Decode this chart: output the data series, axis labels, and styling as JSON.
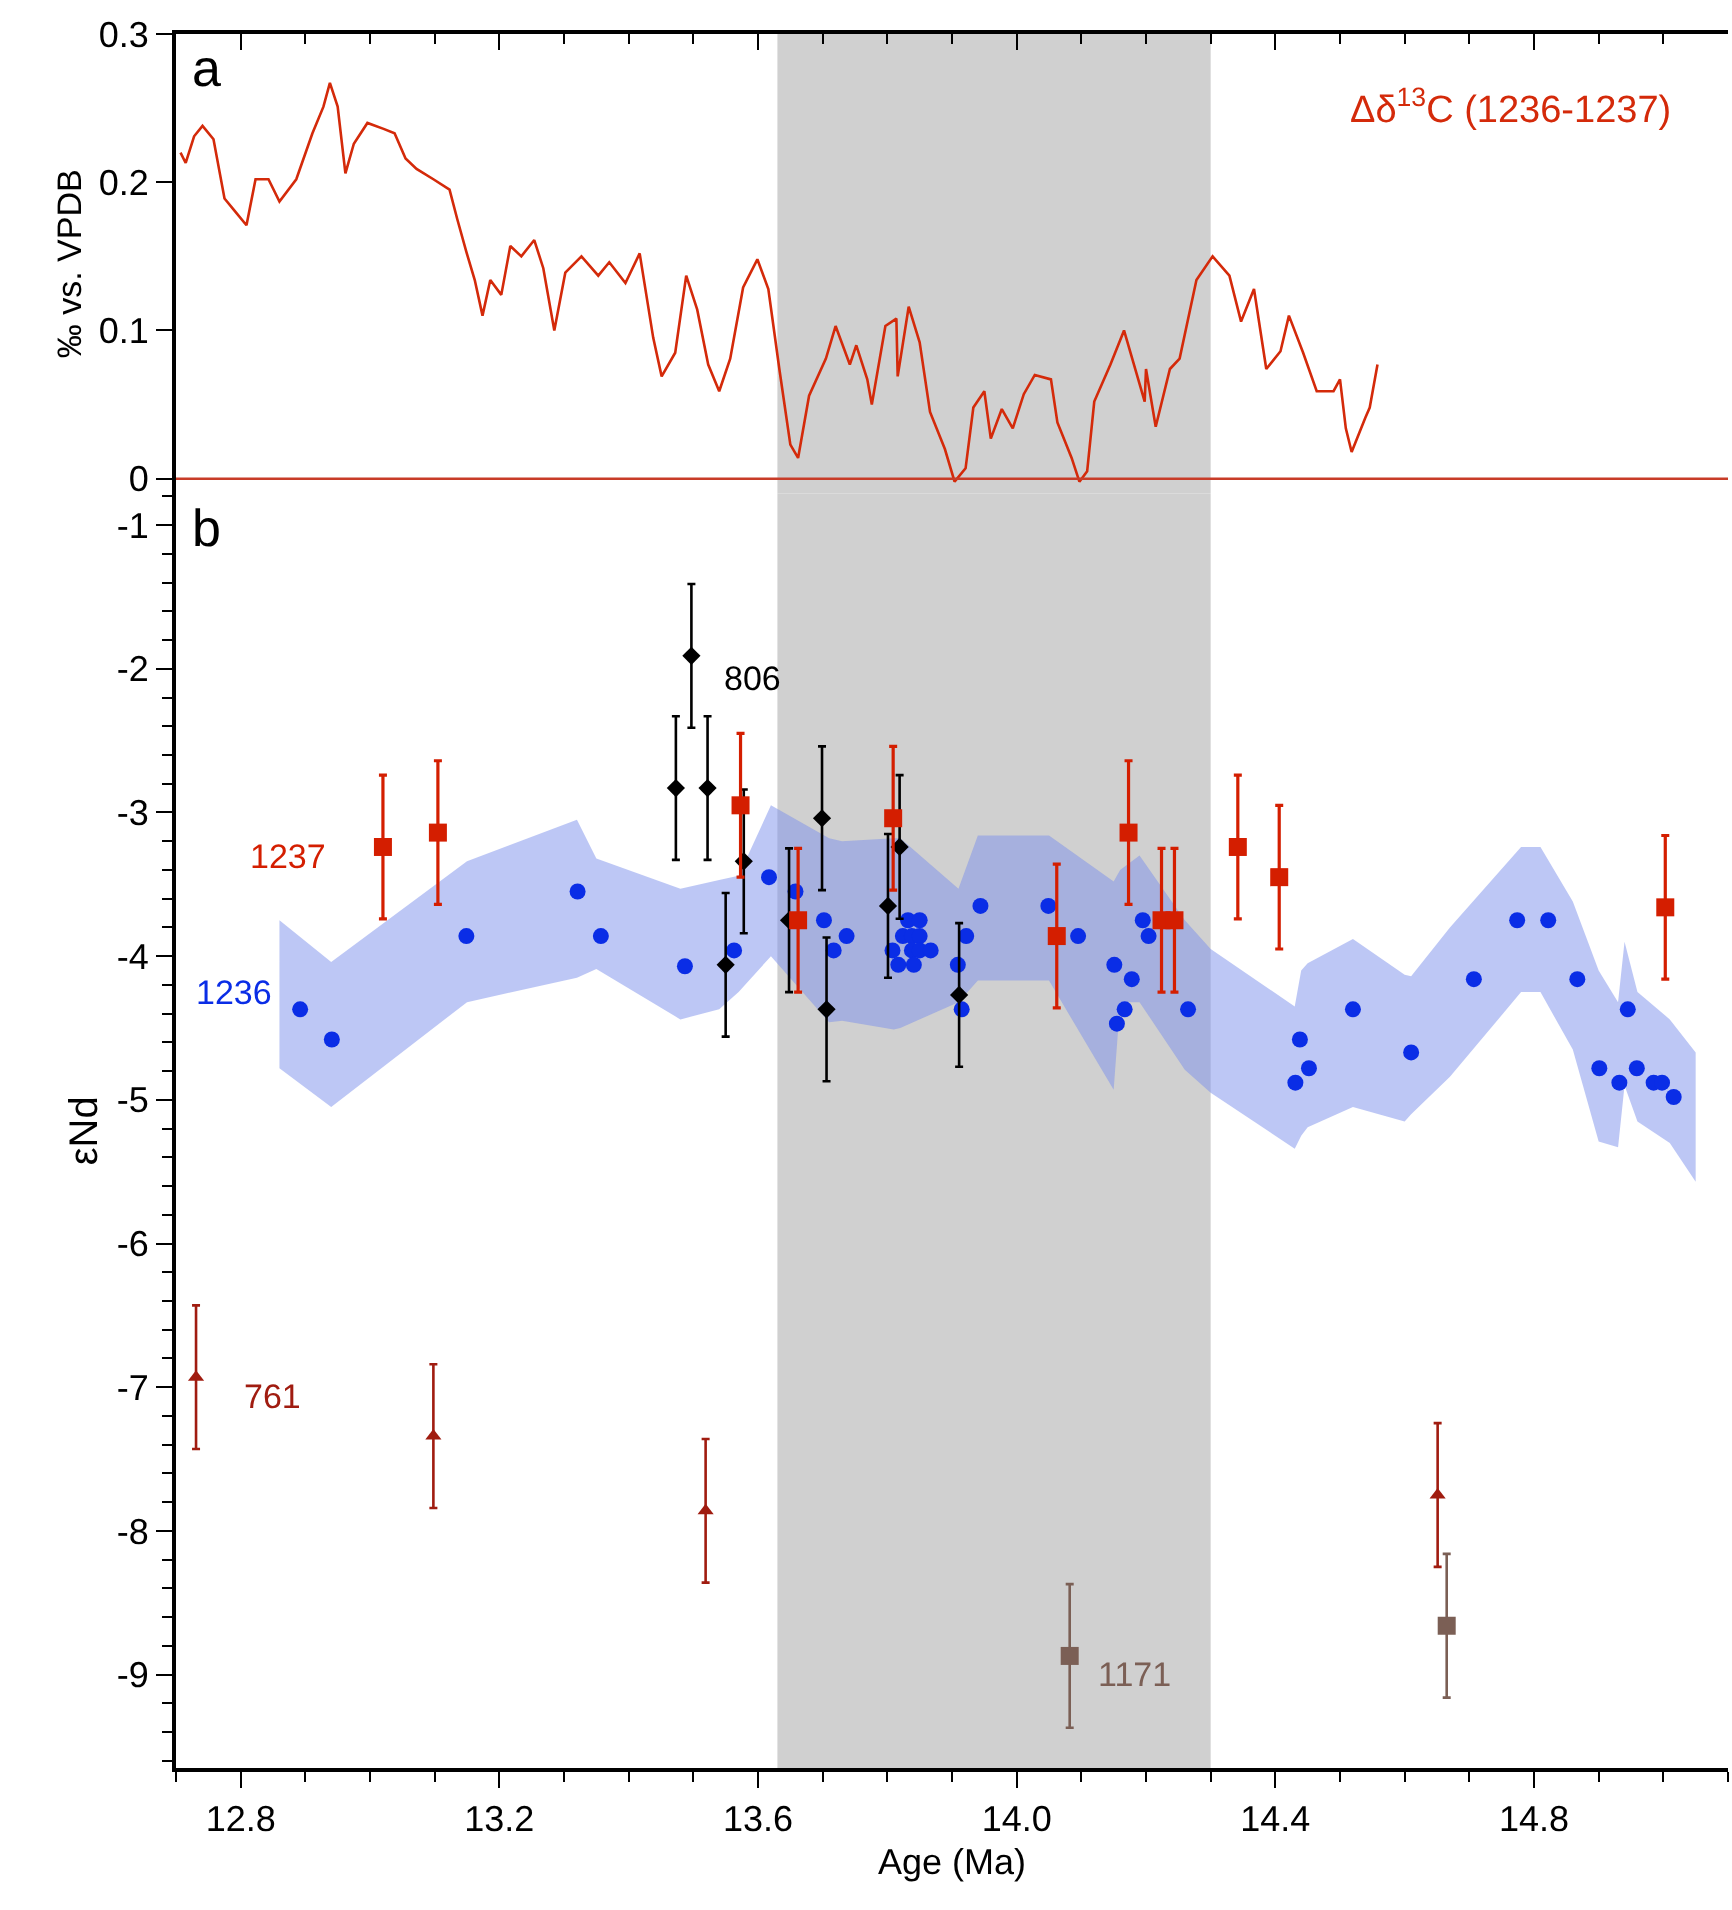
{
  "chart_data": [
    {
      "type": "line",
      "ylabel": "‰ vs. VPDB",
      "annotations": [
        "a"
      ],
      "xlim": [
        12.7,
        15.1
      ],
      "xticks": [
        12.8,
        13.2,
        13.6,
        14.0,
        14.4,
        14.8
      ],
      "ylim": [
        -0.01,
        0.3
      ],
      "yticks": [
        0,
        0.1,
        0.2,
        0.3
      ],
      "tick_labels": "y",
      "bands": [
        {
          "axis": "x",
          "from": 13.63,
          "to": 14.3,
          "color": "#d0d0d0"
        }
      ],
      "ref_lines": [
        {
          "axis": "y",
          "value": 0,
          "color": "#c83c28"
        }
      ],
      "series": [
        {
          "name": "Δδ$^{13}$C (1236-1237)",
          "color": "#d42a0a",
          "line_style": "solid",
          "marker": "none",
          "x": [
            12.707,
            12.715,
            12.728,
            12.741,
            12.758,
            12.775,
            12.792,
            12.809,
            12.823,
            12.843,
            12.86,
            12.886,
            12.911,
            12.928,
            12.938,
            12.95,
            12.962,
            12.975,
            12.996,
            13.021,
            13.038,
            13.055,
            13.072,
            13.098,
            13.123,
            13.135,
            13.149,
            13.162,
            13.174,
            13.186,
            13.203,
            13.217,
            13.234,
            13.254,
            13.268,
            13.285,
            13.302,
            13.327,
            13.353,
            13.37,
            13.395,
            13.417,
            13.438,
            13.451,
            13.472,
            13.489,
            13.506,
            13.523,
            13.54,
            13.557,
            13.577,
            13.599,
            13.616,
            13.633,
            13.65,
            13.662,
            13.679,
            13.705,
            13.72,
            13.742,
            13.752,
            13.769,
            13.776,
            13.797,
            13.814,
            13.816,
            13.833,
            13.85,
            13.866,
            13.889,
            13.904,
            13.921,
            13.933,
            13.95,
            13.96,
            13.977,
            13.994,
            14.011,
            14.028,
            14.053,
            14.063,
            14.085,
            14.097,
            14.109,
            14.12,
            14.145,
            14.166,
            14.186,
            14.198,
            14.2,
            14.215,
            14.237,
            14.252,
            14.278,
            14.303,
            14.329,
            14.347,
            14.367,
            14.386,
            14.408,
            14.421,
            14.443,
            14.464,
            14.49,
            14.5,
            14.509,
            14.518,
            14.539,
            14.546,
            14.558
          ],
          "values": [
            0.22,
            0.213,
            0.231,
            0.238,
            0.229,
            0.189,
            0.18,
            0.171,
            0.202,
            0.202,
            0.187,
            0.202,
            0.233,
            0.251,
            0.267,
            0.251,
            0.206,
            0.226,
            0.24,
            0.236,
            0.233,
            0.216,
            0.209,
            0.202,
            0.195,
            0.175,
            0.153,
            0.134,
            0.11,
            0.134,
            0.124,
            0.157,
            0.15,
            0.161,
            0.142,
            0.1,
            0.139,
            0.15,
            0.137,
            0.146,
            0.132,
            0.152,
            0.095,
            0.069,
            0.085,
            0.137,
            0.114,
            0.077,
            0.059,
            0.081,
            0.129,
            0.148,
            0.128,
            0.074,
            0.023,
            0.014,
            0.056,
            0.081,
            0.103,
            0.077,
            0.09,
            0.067,
            0.05,
            0.103,
            0.108,
            0.069,
            0.116,
            0.092,
            0.045,
            0.02,
            -0.002,
            0.007,
            0.048,
            0.059,
            0.027,
            0.047,
            0.034,
            0.057,
            0.07,
            0.067,
            0.038,
            0.014,
            -0.002,
            0.005,
            0.052,
            0.077,
            0.1,
            0.07,
            0.052,
            0.074,
            0.035,
            0.074,
            0.081,
            0.134,
            0.15,
            0.137,
            0.106,
            0.128,
            0.074,
            0.086,
            0.11,
            0.085,
            0.059,
            0.059,
            0.067,
            0.034,
            0.018,
            0.041,
            0.048,
            0.077
          ]
        }
      ]
    },
    {
      "type": "scatter",
      "xlabel": "Age (Ma)",
      "ylabel": "εNd",
      "annotations": [
        "b"
      ],
      "xlim": [
        12.7,
        15.1
      ],
      "xticks": [
        12.8,
        13.2,
        13.6,
        {
          "value": 14.0,
          "label": "14.0"
        },
        14.4,
        14.8
      ],
      "ylim": [
        -9.65,
        -0.78
      ],
      "yticks": [
        -9,
        -8,
        -7,
        -6,
        -5,
        -4,
        -3,
        -2,
        -1
      ],
      "bands": [
        {
          "axis": "x",
          "from": 13.63,
          "to": 14.3,
          "color": "#d0d0d0"
        }
      ],
      "series": [
        {
          "type": "area",
          "color": "#7b8fec",
          "values": [
            null,
            null,
            null,
            null,
            null,
            null,
            null,
            null,
            null,
            null,
            null,
            null,
            null,
            null,
            null,
            null,
            null,
            null,
            null,
            null,
            null,
            null,
            null,
            null,
            null,
            null,
            null,
            null,
            null,
            null,
            null,
            null,
            null,
            null,
            null,
            null,
            null
          ],
          "x": [
            12.86,
            12.94,
            13.15,
            13.32,
            13.35,
            13.48,
            13.54,
            13.57,
            13.62,
            13.71,
            13.73,
            13.81,
            13.82,
            13.91,
            13.94,
            14.05,
            14.15,
            14.16,
            14.19,
            14.26,
            14.3,
            14.43,
            14.44,
            14.45,
            14.52,
            14.6,
            14.61,
            14.67,
            14.78,
            14.81,
            14.86,
            14.9,
            14.93,
            14.94,
            14.96,
            15.01,
            15.05
          ],
          "upper": [
            -3.75,
            -4.04,
            -3.34,
            -3.05,
            -3.32,
            -3.53,
            -3.47,
            -3.44,
            -2.95,
            -3.18,
            -3.2,
            -3.18,
            -3.18,
            -3.53,
            -3.16,
            -3.16,
            -3.48,
            -3.4,
            -3.3,
            -3.75,
            -3.95,
            -4.35,
            -4.1,
            -4.05,
            -3.88,
            -4.13,
            -4.14,
            -3.8,
            -3.24,
            -3.24,
            -3.62,
            -4.1,
            -4.32,
            -3.9,
            -4.25,
            -4.44,
            -4.67
          ],
          "lower": [
            -4.78,
            -5.05,
            -4.32,
            -4.15,
            -4.09,
            -4.44,
            -4.37,
            -4.25,
            -4.0,
            -4.46,
            -4.45,
            -4.51,
            -4.5,
            -4.32,
            -4.17,
            -4.17,
            -4.93,
            -4.32,
            -4.32,
            -4.79,
            -4.95,
            -5.34,
            -5.25,
            -5.19,
            -5.05,
            -5.15,
            -5.1,
            -4.84,
            -4.25,
            -4.25,
            -4.65,
            -5.29,
            -5.33,
            -4.9,
            -5.15,
            -5.3,
            -5.57
          ]
        },
        {
          "name": "1236",
          "color": "#0a2de6",
          "marker": "circle",
          "x": [
            12.892,
            12.941,
            13.149,
            13.321,
            13.357,
            13.487,
            13.563,
            13.617,
            13.658,
            13.702,
            13.717,
            13.737,
            13.808,
            13.817,
            13.824,
            13.832,
            13.838,
            13.838,
            13.841,
            13.85,
            13.85,
            13.85,
            13.867,
            13.909,
            13.915,
            13.922,
            13.944,
            14.049,
            14.095,
            14.151,
            14.155,
            14.167,
            14.178,
            14.195,
            14.204,
            14.265,
            14.431,
            14.438,
            14.452,
            14.52,
            14.61,
            14.707,
            14.774,
            14.822,
            14.867,
            14.901,
            14.932,
            14.945,
            14.959,
            14.985,
            14.998,
            15.016
          ],
          "values": [
            -4.37,
            -4.58,
            -3.86,
            -3.55,
            -3.86,
            -4.07,
            -3.96,
            -3.45,
            -3.55,
            -3.75,
            -3.96,
            -3.86,
            -3.96,
            -4.06,
            -3.86,
            -3.75,
            -3.86,
            -3.96,
            -4.06,
            -3.75,
            -3.86,
            -3.96,
            -3.96,
            -4.06,
            -4.37,
            -3.86,
            -3.65,
            -3.65,
            -3.86,
            -4.06,
            -4.47,
            -4.37,
            -4.16,
            -3.75,
            -3.86,
            -4.37,
            -4.88,
            -4.58,
            -4.78,
            -4.37,
            -4.67,
            -4.16,
            -3.75,
            -3.75,
            -4.16,
            -4.78,
            -4.88,
            -4.37,
            -4.78,
            -4.88,
            -4.88,
            -4.98
          ]
        },
        {
          "name": "806",
          "color": "#000000",
          "marker": "diamond",
          "x": [
            13.473,
            13.497,
            13.522,
            13.55,
            13.578,
            13.648,
            13.699,
            13.706,
            13.801,
            13.819,
            13.911
          ],
          "values": [
            -2.83,
            -1.91,
            -2.83,
            -4.06,
            -3.34,
            -3.75,
            -3.04,
            -4.37,
            -3.65,
            -3.24,
            -4.27
          ],
          "errors": [
            0.5,
            0.5,
            0.5,
            0.5,
            0.5,
            0.5,
            0.5,
            0.5,
            0.5,
            0.5,
            0.5
          ]
        },
        {
          "name": "1237",
          "color": "#d41e00",
          "marker": "square",
          "x": [
            13.02,
            13.105,
            13.573,
            13.662,
            13.809,
            14.062,
            14.173,
            14.224,
            14.244,
            14.342,
            14.406,
            15.003
          ],
          "values": [
            -3.24,
            -3.14,
            -2.95,
            -3.75,
            -3.04,
            -3.86,
            -3.14,
            -3.75,
            -3.75,
            -3.24,
            -3.45,
            -3.66
          ],
          "errors": [
            0.5,
            0.5,
            0.5,
            0.5,
            0.5,
            0.5,
            0.5,
            0.5,
            0.5,
            0.5,
            0.5,
            0.5
          ]
        },
        {
          "name": "761",
          "color": "#a01c10",
          "marker": "triangle",
          "x": [
            12.731,
            13.098,
            13.519,
            14.651
          ],
          "values": [
            -6.93,
            -7.34,
            -7.86,
            -7.75
          ],
          "errors": [
            0.5,
            0.5,
            0.5,
            0.5
          ]
        },
        {
          "name": "1171",
          "color": "#7b5f55",
          "marker": "square",
          "x": [
            14.082,
            14.665
          ],
          "values": [
            -8.87,
            -8.66
          ],
          "errors": [
            0.5,
            0.5
          ]
        }
      ]
    }
  ]
}
